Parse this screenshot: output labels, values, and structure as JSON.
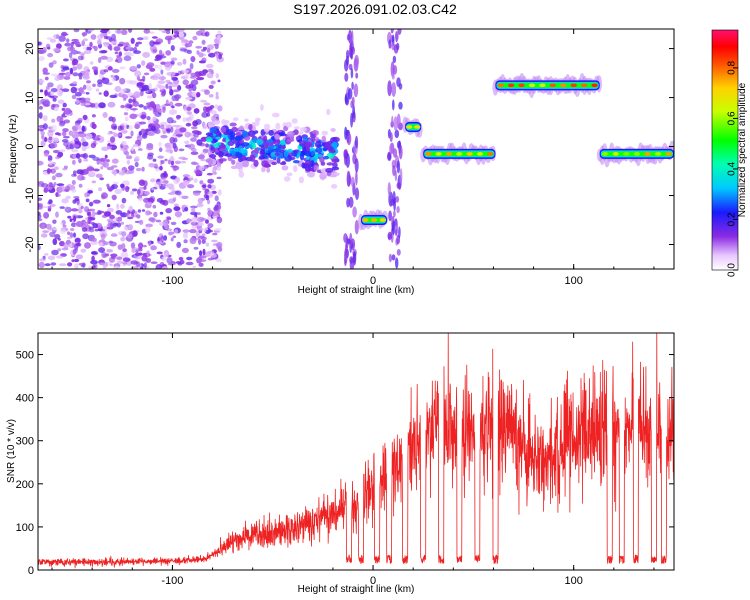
{
  "title": "S197.2026.091.02.03.C42",
  "colors": {
    "snr_line": "#ee2222",
    "axis": "#000000",
    "background": "#ffffff"
  },
  "chart_data": [
    {
      "type": "heatmap",
      "name": "spectrogram",
      "title": "",
      "xlabel": "Height of straight line (km)",
      "ylabel": "Frequency (Hz)",
      "xlim": [
        -167,
        150
      ],
      "ylim": [
        -25,
        24
      ],
      "xticks": [
        -100,
        0,
        100
      ],
      "yticks": [
        -20,
        -10,
        0,
        10,
        20
      ],
      "colorbar": {
        "label": "Normalized spectral amplitude",
        "range": [
          0,
          0.95
        ],
        "ticks": [
          0.0,
          0.2,
          0.4,
          0.6,
          0.8
        ],
        "colormap": "rainbow"
      },
      "features": [
        {
          "label": "noise field",
          "x_range": [
            -167,
            -82
          ],
          "freq_range": [
            -25,
            24
          ],
          "amplitude": 0.08
        },
        {
          "label": "scattered track",
          "x_range": [
            -82,
            -18
          ],
          "freq_range": [
            -8,
            5
          ],
          "amplitude": 0.35
        },
        {
          "label": "vertical streak",
          "x_range": [
            -14,
            -8
          ],
          "freq_range": [
            -25,
            24
          ],
          "amplitude": 0.05
        },
        {
          "label": "vertical streak",
          "x_range": [
            8,
            14
          ],
          "freq_range": [
            -25,
            24
          ],
          "amplitude": 0.05
        },
        {
          "label": "tone",
          "x_range": [
            -6,
            7
          ],
          "freq_center": -15,
          "amplitude": 0.75
        },
        {
          "label": "tone",
          "x_range": [
            16,
            24
          ],
          "freq_center": 4,
          "amplitude": 0.8
        },
        {
          "label": "tone",
          "x_range": [
            25,
            61
          ],
          "freq_center": -1.5,
          "amplitude": 0.8
        },
        {
          "label": "tone",
          "x_range": [
            61,
            113
          ],
          "freq_center": 12.5,
          "amplitude": 0.85
        },
        {
          "label": "tone",
          "x_range": [
            113,
            150
          ],
          "freq_center": -1.5,
          "amplitude": 0.75
        }
      ]
    },
    {
      "type": "line",
      "name": "snr",
      "title": "",
      "xlabel": "Height of straight line (km)",
      "ylabel": "SNR (10 * v/v)",
      "xlim": [
        -167,
        150
      ],
      "ylim": [
        0,
        550
      ],
      "xticks": [
        -100,
        0,
        100
      ],
      "yticks": [
        0,
        100,
        200,
        300,
        400,
        500
      ],
      "series": [
        {
          "name": "SNR",
          "color": "#ee2222",
          "trend_x": [
            -167,
            -130,
            -100,
            -85,
            -78,
            -70,
            -60,
            -50,
            -40,
            -30,
            -20,
            -10,
            -2,
            5,
            15,
            20,
            30,
            40,
            50,
            60,
            68,
            75,
            80,
            90,
            100,
            110,
            120,
            130,
            140,
            150
          ],
          "trend_y": [
            18,
            18,
            20,
            25,
            40,
            65,
            85,
            80,
            95,
            110,
            125,
            150,
            190,
            215,
            240,
            290,
            320,
            330,
            325,
            330,
            320,
            300,
            255,
            270,
            305,
            325,
            320,
            330,
            325,
            340
          ],
          "dropout_x": [
            -12,
            -6,
            2,
            8,
            16,
            25,
            34,
            43,
            52,
            61,
            118,
            124,
            131,
            140,
            145
          ]
        }
      ]
    }
  ]
}
